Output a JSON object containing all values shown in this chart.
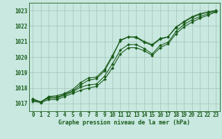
{
  "title": "Graphe pression niveau de la mer (hPa)",
  "background_color": "#c8e8e0",
  "grid_color": "#a8c8c0",
  "line_color": "#1a5c1a",
  "x_values": [
    0,
    1,
    2,
    3,
    4,
    5,
    6,
    7,
    8,
    9,
    10,
    11,
    12,
    13,
    14,
    15,
    16,
    17,
    18,
    19,
    20,
    21,
    22,
    23
  ],
  "series": [
    [
      1017.3,
      1017.1,
      1017.4,
      1017.4,
      1017.6,
      1017.8,
      1018.2,
      1018.5,
      1018.6,
      1019.1,
      1020.0,
      1021.1,
      1021.3,
      1021.3,
      1021.0,
      1020.8,
      1021.2,
      1021.3,
      1021.9,
      1022.3,
      1022.6,
      1022.8,
      1022.9,
      1023.0
    ],
    [
      1017.25,
      1017.1,
      1017.45,
      1017.5,
      1017.65,
      1017.9,
      1018.35,
      1018.65,
      1018.7,
      1019.2,
      1020.1,
      1021.05,
      1021.3,
      1021.25,
      1020.95,
      1020.75,
      1021.15,
      1021.3,
      1021.95,
      1022.25,
      1022.55,
      1022.75,
      1022.9,
      1023.0
    ],
    [
      1017.2,
      1017.1,
      1017.35,
      1017.35,
      1017.55,
      1017.75,
      1018.05,
      1018.2,
      1018.25,
      1018.75,
      1019.55,
      1020.45,
      1020.8,
      1020.8,
      1020.55,
      1020.2,
      1020.75,
      1020.95,
      1021.65,
      1022.1,
      1022.4,
      1022.6,
      1022.8,
      1022.95
    ],
    [
      1017.15,
      1017.05,
      1017.25,
      1017.25,
      1017.45,
      1017.65,
      1017.85,
      1018.0,
      1018.1,
      1018.55,
      1019.3,
      1020.2,
      1020.6,
      1020.6,
      1020.4,
      1020.1,
      1020.6,
      1020.85,
      1021.5,
      1021.95,
      1022.25,
      1022.5,
      1022.7,
      1022.9
    ]
  ],
  "ylim": [
    1016.5,
    1023.5
  ],
  "yticks": [
    1017,
    1018,
    1019,
    1020,
    1021,
    1022,
    1023
  ],
  "xlim": [
    -0.5,
    23.5
  ],
  "xticks": [
    0,
    1,
    2,
    3,
    4,
    5,
    6,
    7,
    8,
    9,
    10,
    11,
    12,
    13,
    14,
    15,
    16,
    17,
    18,
    19,
    20,
    21,
    22,
    23
  ],
  "xlabel_fontsize": 5.5,
  "ylabel_fontsize": 5.5,
  "title_fontsize": 6.0,
  "marker": "D",
  "marker_size": 2.0,
  "line_width": 0.8
}
